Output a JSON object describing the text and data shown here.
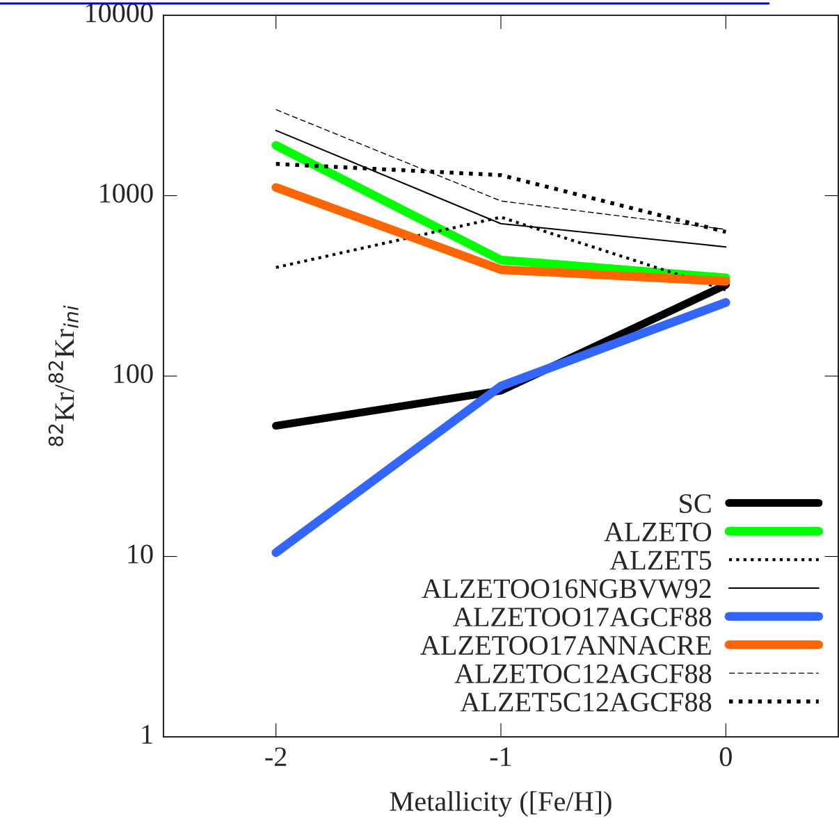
{
  "chart_data": {
    "type": "line",
    "xlabel": "Metallicity ([Fe/H])",
    "ylabel": "$^{82}$Kr/$^{82}$Kr$_{ini}$",
    "x": [
      -2,
      -1,
      0
    ],
    "log": "y",
    "xlim": [
      -2.5,
      0.5
    ],
    "xticks": [
      -2,
      -1,
      0
    ],
    "ylim": [
      1,
      10000
    ],
    "yticks": [
      1,
      10,
      100,
      1000,
      10000
    ],
    "legend": "bottom right",
    "grid": false,
    "marker": "none",
    "series": [
      {
        "name": "SC",
        "color": "#000000",
        "line_style": "solid",
        "values": [
          53,
          83,
          320
        ]
      },
      {
        "name": "ALZETO",
        "color": "#00ff00",
        "line_style": "solid",
        "values": [
          1900,
          440,
          350
        ]
      },
      {
        "name": "ALZET5",
        "color": "#000000",
        "line_style": "dotted",
        "values": [
          400,
          760,
          300
        ]
      },
      {
        "name": "ALZETOO16NGBVW92",
        "color": "#000000",
        "line_style": "solid",
        "values": [
          2300,
          700,
          520
        ]
      },
      {
        "name": "ALZETOO17AGCF88",
        "color": "#3366ff",
        "line_style": "solid",
        "values": [
          10.5,
          88,
          256
        ]
      },
      {
        "name": "ALZETOO17ANNACRE",
        "color": "#ff6600",
        "line_style": "solid",
        "values": [
          1110,
          389,
          335
        ]
      },
      {
        "name": "ALZETOC12AGCF88",
        "color": "#000000",
        "line_style": "dashed",
        "values": [
          3000,
          935,
          650
        ]
      },
      {
        "name": "ALZET5C12AGCF88",
        "color": "#000000",
        "line_style": "dotted",
        "values": [
          1500,
          1300,
          630
        ]
      }
    ]
  }
}
